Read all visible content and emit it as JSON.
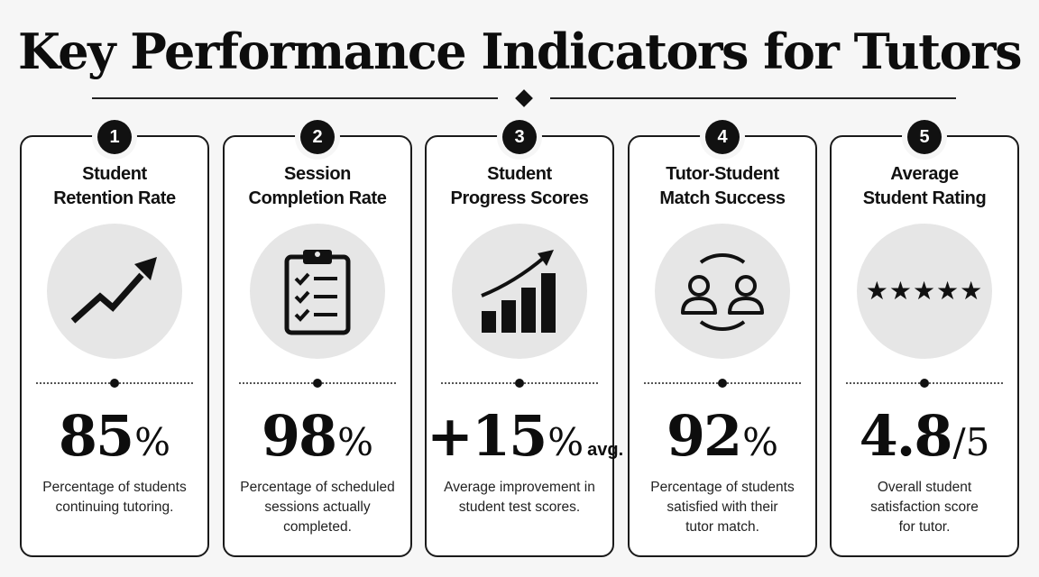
{
  "page": {
    "title": "Key Performance Indicators for Tutors"
  },
  "cards": [
    {
      "number": "1",
      "title_line1": "Student",
      "title_line2": "Retention Rate",
      "icon": "trend-up-arrow-icon",
      "value": "85",
      "unit": "%",
      "suffix": "",
      "desc_line1": "Percentage of students",
      "desc_line2": "continuing tutoring.",
      "desc_line3": ""
    },
    {
      "number": "2",
      "title_line1": "Session",
      "title_line2": "Completion Rate",
      "icon": "clipboard-checklist-icon",
      "value": "98",
      "unit": "%",
      "suffix": "",
      "desc_line1": "Percentage of scheduled",
      "desc_line2": "sessions actually",
      "desc_line3": "completed."
    },
    {
      "number": "3",
      "title_line1": "Student",
      "title_line2": "Progress Scores",
      "icon": "bar-chart-growth-icon",
      "value": "+15",
      "unit": "%",
      "suffix": "avg.",
      "desc_line1": "Average improvement in",
      "desc_line2": "student test scores.",
      "desc_line3": ""
    },
    {
      "number": "4",
      "title_line1": "Tutor-Student",
      "title_line2": "Match Success",
      "icon": "two-users-exchange-icon",
      "value": "92",
      "unit": "%",
      "suffix": "",
      "desc_line1": "Percentage of students",
      "desc_line2": "satisfied with their",
      "desc_line3": "tutor match."
    },
    {
      "number": "5",
      "title_line1": "Average",
      "title_line2": "Student Rating",
      "icon": "five-stars-icon",
      "stars": "★★★★★",
      "value": "4.8",
      "unit": "/5",
      "suffix": "",
      "desc_line1": "Overall student",
      "desc_line2": "satisfaction score",
      "desc_line3": "for tutor."
    }
  ]
}
